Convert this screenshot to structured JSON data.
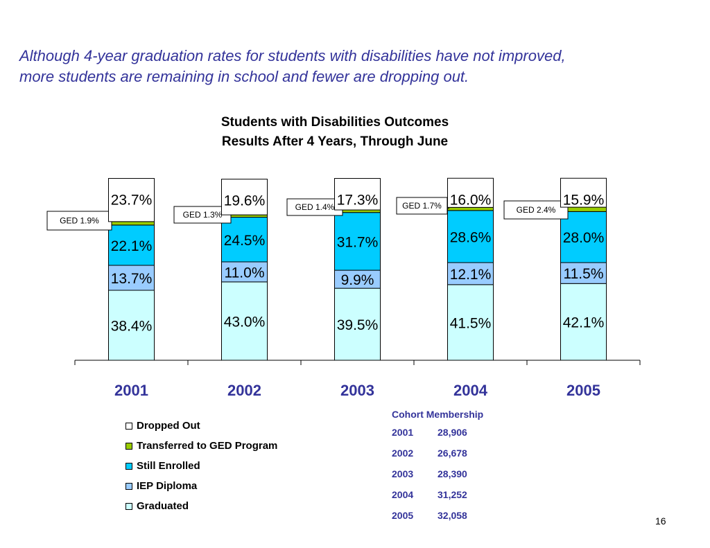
{
  "headline": {
    "line1": "Although 4-year graduation rates for students with disabilities have not improved,",
    "line2": "more students are remaining in school and fewer are dropping out."
  },
  "chart_data": {
    "type": "bar",
    "stacked": true,
    "title_lines": [
      "Students with Disabilities Outcomes",
      "Results After 4 Years, Through June"
    ],
    "categories": [
      "2001",
      "2002",
      "2003",
      "2004",
      "2005"
    ],
    "series": [
      {
        "name": "Graduated",
        "color": "#ccffff",
        "values": [
          38.4,
          43.0,
          39.5,
          41.5,
          42.1
        ],
        "labels": [
          "38.4%",
          "43.0%",
          "39.5%",
          "41.5%",
          "42.1%"
        ]
      },
      {
        "name": "IEP Diploma",
        "color": "#99ccff",
        "values": [
          13.7,
          11.0,
          9.9,
          12.1,
          11.5
        ],
        "labels": [
          "13.7%",
          "11.0%",
          "9.9%",
          "12.1%",
          "11.5%"
        ]
      },
      {
        "name": "Still Enrolled",
        "color": "#00ccff",
        "values": [
          22.1,
          24.5,
          31.7,
          28.6,
          28.0
        ],
        "labels": [
          "22.1%",
          "24.5%",
          "31.7%",
          "28.6%",
          "28.0%"
        ]
      },
      {
        "name": "Transferred to GED Program",
        "color": "#99cc00",
        "values": [
          1.9,
          1.3,
          1.4,
          1.7,
          2.4
        ],
        "labels": [
          "GED 1.9%",
          "GED 1.3%",
          "GED 1.4%",
          "GED 1.7%",
          "GED 2.4%"
        ]
      },
      {
        "name": "Dropped Out",
        "color": "#ffffff",
        "values": [
          23.7,
          19.6,
          17.3,
          16.0,
          15.9
        ],
        "labels": [
          "23.7%",
          "19.6%",
          "17.3%",
          "16.0%",
          "15.9%"
        ]
      }
    ],
    "legend": [
      "Dropped Out",
      "Transferred to GED Program",
      "Still Enrolled",
      "IEP Diploma",
      "Graduated"
    ],
    "ylim": [
      0,
      100
    ],
    "grid": false,
    "legend_position": "bottom-left"
  },
  "cohort": {
    "title": "Cohort Membership",
    "rows": [
      {
        "year": "2001",
        "count": "28,906"
      },
      {
        "year": "2002",
        "count": "26,678"
      },
      {
        "year": "2003",
        "count": "28,390"
      },
      {
        "year": "2004",
        "count": "31,252"
      },
      {
        "year": "2005",
        "count": "32,058"
      }
    ]
  },
  "page_number": "16"
}
